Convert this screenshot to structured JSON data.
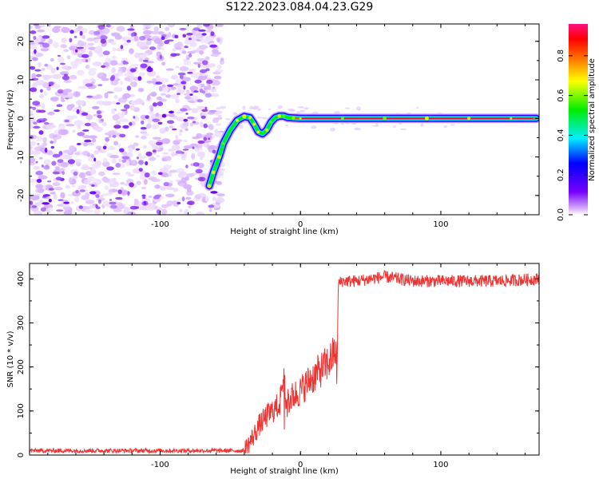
{
  "title": "S122.2023.084.04.23.G29",
  "colors": {
    "series": "#ee3333",
    "frame": "#000000"
  },
  "chart_data": [
    {
      "type": "heatmap",
      "title": "S122.2023.084.04.23.G29",
      "xlabel": "Height of straight line (km)",
      "ylabel": "Frequency (Hz)",
      "xlim": [
        -193,
        170
      ],
      "ylim": [
        -25,
        24.5
      ],
      "xticks": [
        -100,
        0,
        100
      ],
      "xtick_labels": [
        "-100",
        "0",
        "100"
      ],
      "yticks": [
        -20,
        -10,
        0,
        10,
        20
      ],
      "ytick_labels": [
        "-20",
        "-10",
        "0",
        "10",
        "20"
      ],
      "noise_region_x": [
        -193,
        -60
      ],
      "ridge": {
        "x": [
          -65,
          -62,
          -58,
          -55,
          -50,
          -45,
          -40,
          -36,
          -33,
          -30,
          -27,
          -24,
          -21,
          -18,
          -15,
          -12,
          -9,
          -5,
          0,
          30,
          60,
          90,
          120,
          150,
          168
        ],
        "y": [
          -17.5,
          -14,
          -10,
          -6.5,
          -3,
          -0.5,
          0.5,
          0.2,
          -1.5,
          -3.5,
          -4,
          -3,
          -1,
          0.2,
          0.6,
          0.6,
          0.2,
          0.1,
          0,
          0,
          0,
          0,
          0,
          0,
          0
        ]
      },
      "colorbar": {
        "label": "Normalized spectral amplitude",
        "ticks": [
          0.0,
          0.2,
          0.4,
          0.6,
          0.8
        ],
        "tick_labels": [
          "0.0",
          "0.2",
          "0.4",
          "0.6",
          "0.8"
        ],
        "range": [
          0,
          0.96
        ],
        "colormap": "purple-blue-cyan-green-yellow-red-magenta"
      }
    },
    {
      "type": "line",
      "xlabel": "Height of straight line (km)",
      "ylabel": "SNR (10 * v/v)",
      "xlim": [
        -193,
        170
      ],
      "ylim": [
        0,
        435
      ],
      "xticks": [
        -100,
        0,
        100
      ],
      "xtick_labels": [
        "-100",
        "0",
        "100"
      ],
      "yticks": [
        0,
        100,
        200,
        300,
        400
      ],
      "ytick_labels": [
        "0",
        "100",
        "200",
        "300",
        "400"
      ],
      "x": [
        -193,
        -150,
        -100,
        -60,
        -40,
        -37,
        -33,
        -30,
        -25,
        -20,
        -15,
        -12,
        -10,
        -8,
        -5,
        0,
        5,
        10,
        15,
        20,
        23,
        25,
        26,
        27,
        30,
        40,
        50,
        60,
        80,
        100,
        120,
        140,
        160,
        170
      ],
      "y": [
        10,
        10,
        10,
        10,
        10,
        25,
        45,
        65,
        85,
        100,
        115,
        175,
        110,
        125,
        135,
        145,
        165,
        180,
        195,
        210,
        225,
        240,
        180,
        390,
        395,
        395,
        400,
        405,
        395,
        395,
        395,
        395,
        398,
        400
      ]
    }
  ]
}
